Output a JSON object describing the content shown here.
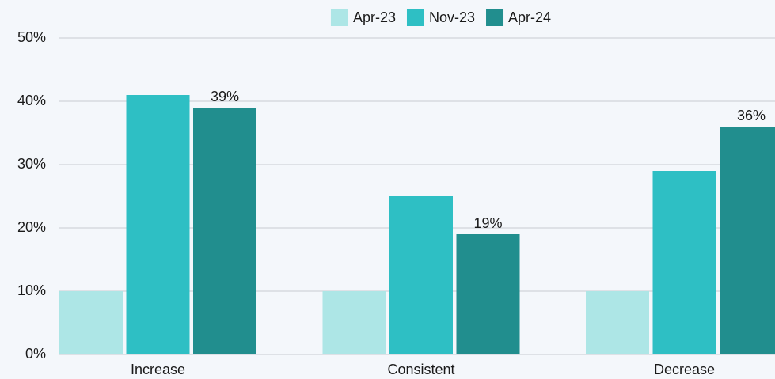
{
  "chart_data": {
    "type": "bar",
    "categories": [
      "Increase",
      "Consistent",
      "Decrease"
    ],
    "series": [
      {
        "name": "Apr-23",
        "color": "#ade6e6",
        "values": [
          10,
          10,
          10
        ]
      },
      {
        "name": "Nov-23",
        "color": "#2ebfc4",
        "values": [
          41,
          25,
          29
        ]
      },
      {
        "name": "Apr-24",
        "color": "#218e8e",
        "values": [
          39,
          19,
          36
        ],
        "value_labels": [
          "39%",
          "19%",
          "36%"
        ]
      }
    ],
    "ylim": [
      0,
      50
    ],
    "yticks": [
      {
        "value": 0,
        "label": "0%"
      },
      {
        "value": 10,
        "label": "10%"
      },
      {
        "value": 20,
        "label": "20%"
      },
      {
        "value": 30,
        "label": "30%"
      },
      {
        "value": 40,
        "label": "40%"
      },
      {
        "value": 50,
        "label": "50%"
      }
    ],
    "grid": true,
    "legend": "top"
  }
}
